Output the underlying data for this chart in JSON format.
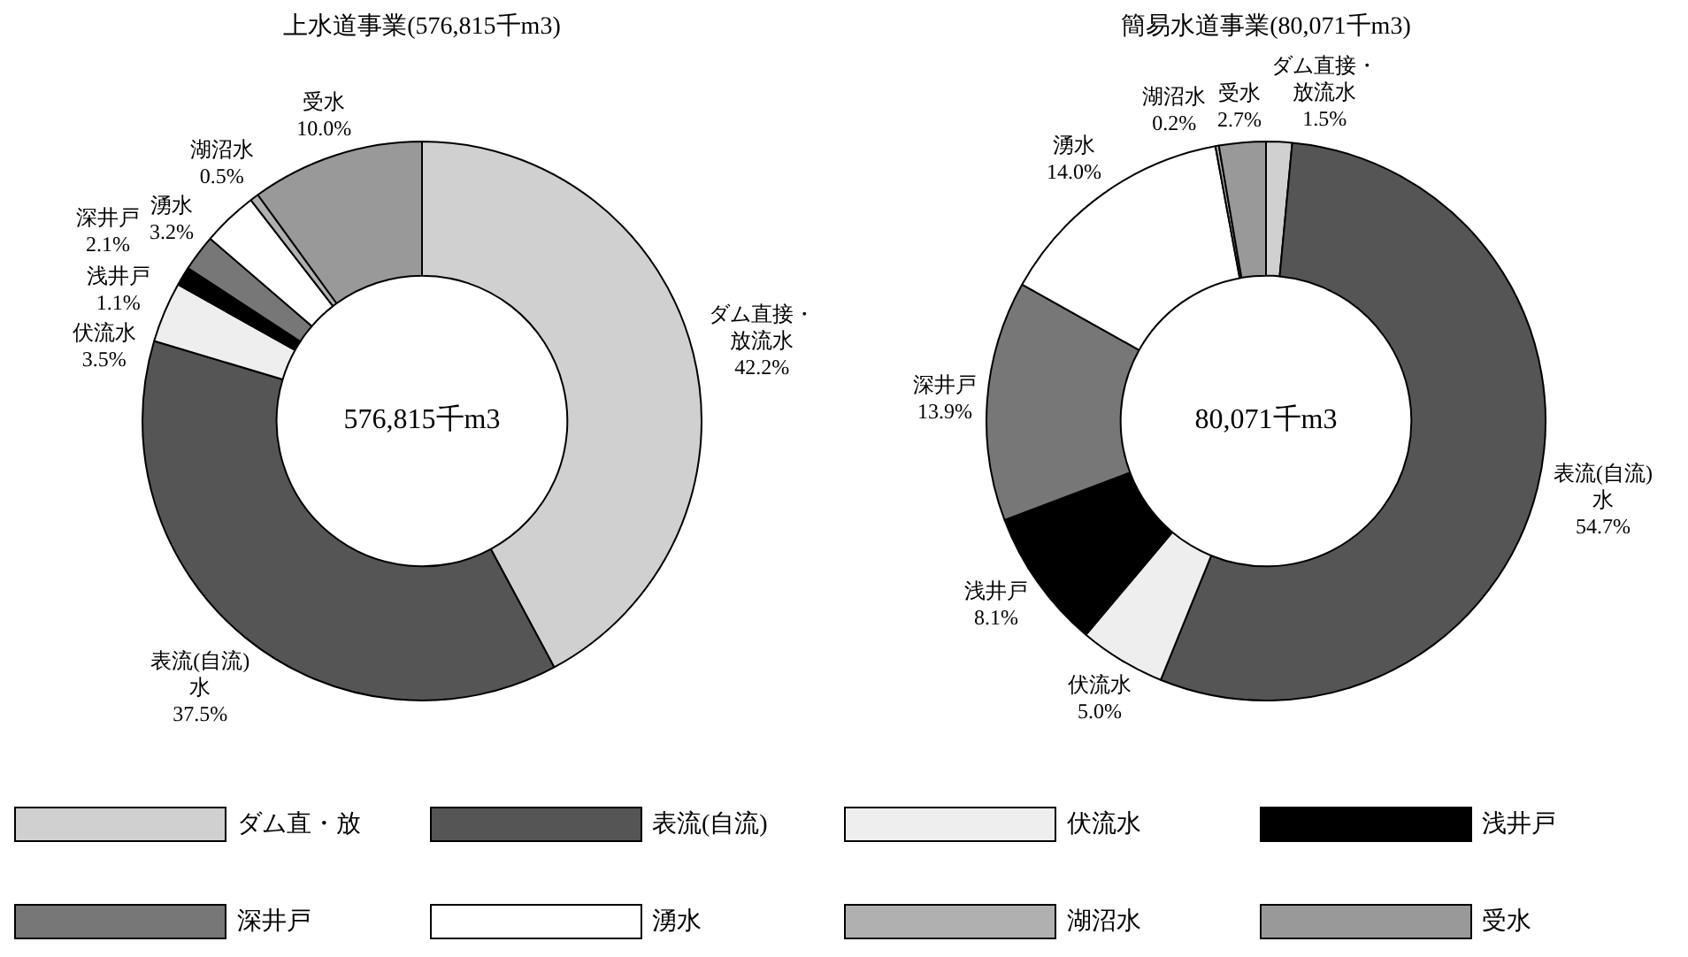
{
  "chart_data": [
    {
      "type": "donut",
      "title": "上水道事業(576,815千m3)",
      "categories": [
        "ダム直接・放流水",
        "表流(自流)水",
        "伏流水",
        "浅井戸",
        "深井戸",
        "湧水",
        "湖沼水",
        "受水"
      ],
      "values": [
        42.2,
        37.5,
        3.5,
        1.1,
        2.1,
        3.2,
        0.5,
        10.0
      ],
      "value_labels": [
        "42.2%",
        "37.5%",
        "3.5%",
        "1.1%",
        "2.1%",
        "3.2%",
        "0.5%",
        "10.0%"
      ],
      "colors": [
        "#d0d0d0",
        "#555555",
        "#eeeeee",
        "#000000",
        "#777777",
        "#ffffff",
        "#b0b0b0",
        "#999999"
      ],
      "annotations": [
        "576,815千m3"
      ]
    },
    {
      "type": "donut",
      "title": "簡易水道事業(80,071千m3)",
      "categories": [
        "ダム直接・放流水",
        "表流(自流)水",
        "伏流水",
        "浅井戸",
        "深井戸",
        "湧水",
        "湖沼水",
        "受水"
      ],
      "values": [
        1.5,
        54.7,
        5.0,
        8.1,
        13.9,
        14.0,
        0.2,
        2.7
      ],
      "value_labels": [
        "1.5%",
        "54.7%",
        "5.0%",
        "8.1%",
        "13.9%",
        "14.0%",
        "0.2%",
        "2.7%"
      ],
      "colors": [
        "#d0d0d0",
        "#555555",
        "#eeeeee",
        "#000000",
        "#777777",
        "#ffffff",
        "#b0b0b0",
        "#999999"
      ],
      "annotations": [
        "80,071千m3"
      ]
    },
    {
      "type": "other",
      "annotations": [
        "ダム直・放",
        "表流(自流)",
        "伏流水",
        "浅井戸",
        "深井戸",
        "湧水",
        "湖沼水",
        "受水"
      ]
    }
  ]
}
